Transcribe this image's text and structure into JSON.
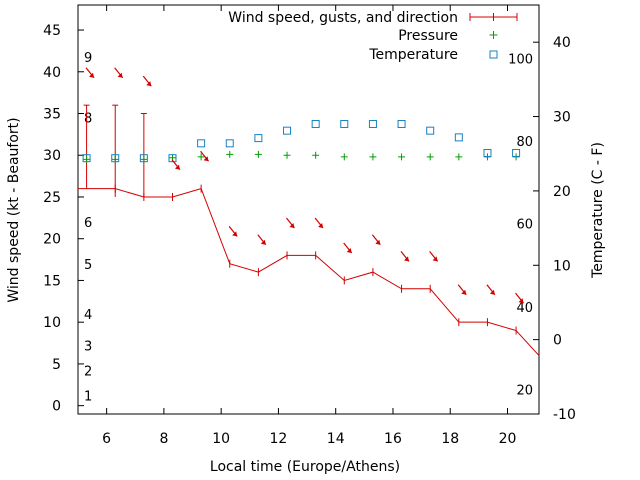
{
  "chart_data": {
    "type": "line",
    "xlabel": "Local time (Europe/Athens)",
    "ylabel": "Wind speed (kt - Beaufort)",
    "y2label": "Temperature (C - F)",
    "xlim": [
      5.0,
      21.1
    ],
    "ylim": [
      -1,
      48
    ],
    "y2lim": [
      -10,
      45
    ],
    "xticks": [
      6,
      8,
      10,
      12,
      14,
      16,
      18,
      20
    ],
    "yticks": [
      0,
      5,
      10,
      15,
      20,
      25,
      30,
      35,
      40,
      45
    ],
    "y2ticks": [
      -10,
      0,
      10,
      20,
      30,
      40
    ],
    "beaufort_labels": [
      {
        "label": "1",
        "y": 1.2
      },
      {
        "label": "2",
        "y": 4.2
      },
      {
        "label": "3",
        "y": 7.2
      },
      {
        "label": "4",
        "y": 11.0
      },
      {
        "label": "5",
        "y": 17.0
      },
      {
        "label": "6",
        "y": 22.0
      },
      {
        "label": "8",
        "y": 34.5
      },
      {
        "label": "9",
        "y": 41.8
      }
    ],
    "fahrenheit_labels": [
      {
        "label": "20",
        "y2": -6.7
      },
      {
        "label": "40",
        "y2": 4.4
      },
      {
        "label": "60",
        "y2": 15.6
      },
      {
        "label": "80",
        "y2": 26.7
      },
      {
        "label": "100",
        "y2": 37.8
      }
    ],
    "legend": {
      "position": "top-right",
      "entries": [
        "Wind speed, gusts, and direction",
        "Pressure",
        "Temperature"
      ]
    },
    "series": [
      {
        "name": "Wind speed, gusts, and direction",
        "color": "#d40000",
        "x": [
          5.0,
          6.3,
          7.3,
          8.3,
          9.3,
          10.3,
          11.3,
          12.3,
          13.3,
          14.3,
          15.3,
          16.3,
          17.3,
          18.3,
          19.3,
          20.3,
          21.1
        ],
        "y": [
          26,
          26,
          25,
          25,
          26,
          17,
          16,
          18,
          18,
          15,
          16,
          14,
          14,
          10,
          10,
          9,
          6
        ],
        "gust_x": [
          5.3,
          6.3,
          7.3
        ],
        "gust_y": [
          36,
          36,
          35
        ]
      },
      {
        "name": "Pressure",
        "color": "#00a000",
        "x": [
          5.3,
          6.3,
          7.3,
          8.3,
          9.3,
          10.3,
          11.3,
          12.3,
          13.3,
          14.3,
          15.3,
          16.3,
          17.3,
          18.3,
          19.3,
          20.3
        ],
        "y": [
          29.5,
          29.5,
          29.5,
          29.7,
          29.8,
          30.1,
          30.1,
          30.0,
          30.0,
          29.8,
          29.8,
          29.8,
          29.8,
          29.8,
          29.8,
          29.8
        ]
      },
      {
        "name": "Temperature",
        "axis": "y2",
        "color": "#1a80c0",
        "x": [
          5.3,
          6.3,
          7.3,
          8.3,
          9.3,
          10.3,
          11.3,
          12.3,
          13.3,
          14.3,
          15.3,
          16.3,
          17.3,
          18.3,
          19.3,
          20.3
        ],
        "y": [
          24.4,
          24.4,
          24.4,
          24.4,
          26.4,
          26.4,
          27.1,
          28.1,
          29.0,
          29.0,
          29.0,
          29.0,
          28.1,
          27.2,
          25.1,
          25.1
        ]
      }
    ],
    "wind_direction_arrows": {
      "x": [
        5.35,
        6.35,
        7.35,
        8.35,
        9.35,
        10.35,
        11.35,
        12.35,
        13.35,
        14.35,
        15.35,
        16.35,
        17.35,
        18.35,
        19.35,
        20.35
      ],
      "y": [
        40.0,
        40.0,
        39.0,
        29.0,
        30.0,
        21.0,
        20.0,
        22.0,
        22.0,
        19.0,
        20.0,
        18.0,
        18.0,
        14.0,
        14.0,
        13.0
      ]
    },
    "grid": false
  }
}
